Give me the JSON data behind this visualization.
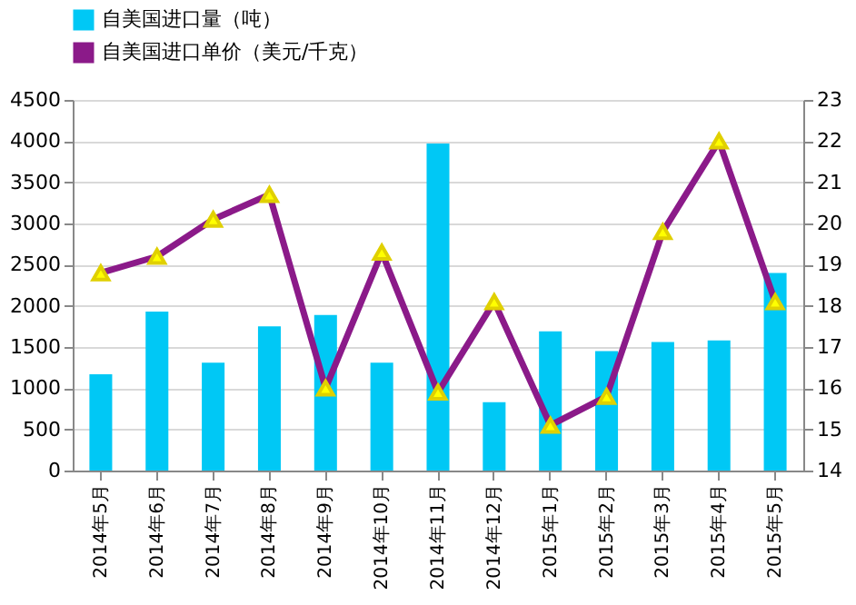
{
  "chart_data": {
    "type": "bar",
    "categories": [
      "2014年5月",
      "2014年6月",
      "2014年7月",
      "2014年8月",
      "2014年9月",
      "2014年10月",
      "2014年11月",
      "2014年12月",
      "2015年1月",
      "2015年2月",
      "2015年3月",
      "2015年4月",
      "2015年5月"
    ],
    "series": [
      {
        "name": "自美国进口量（吨）",
        "color": "#00c8f5",
        "values": [
          1170,
          1930,
          1310,
          1750,
          1890,
          1310,
          3970,
          830,
          1690,
          1450,
          1560,
          1580,
          2400
        ]
      },
      {
        "name": "自美国进口单价（美元/千克）",
        "type": "line",
        "axis": "y2",
        "color": "#8b1a89",
        "values": [
          18.8,
          19.2,
          20.1,
          20.7,
          16.0,
          19.3,
          15.9,
          18.1,
          15.1,
          15.8,
          19.8,
          22.0,
          18.1
        ]
      }
    ],
    "ylim": [
      0,
      4500
    ],
    "yticks": [
      0,
      500,
      1000,
      1500,
      2000,
      2500,
      3000,
      3500,
      4000,
      4500
    ],
    "y2lim": [
      14,
      23
    ],
    "y2ticks": [
      14,
      15,
      16,
      17,
      18,
      19,
      20,
      21,
      22,
      23
    ],
    "grid": "y",
    "legend": "top",
    "marker": "triangle"
  }
}
